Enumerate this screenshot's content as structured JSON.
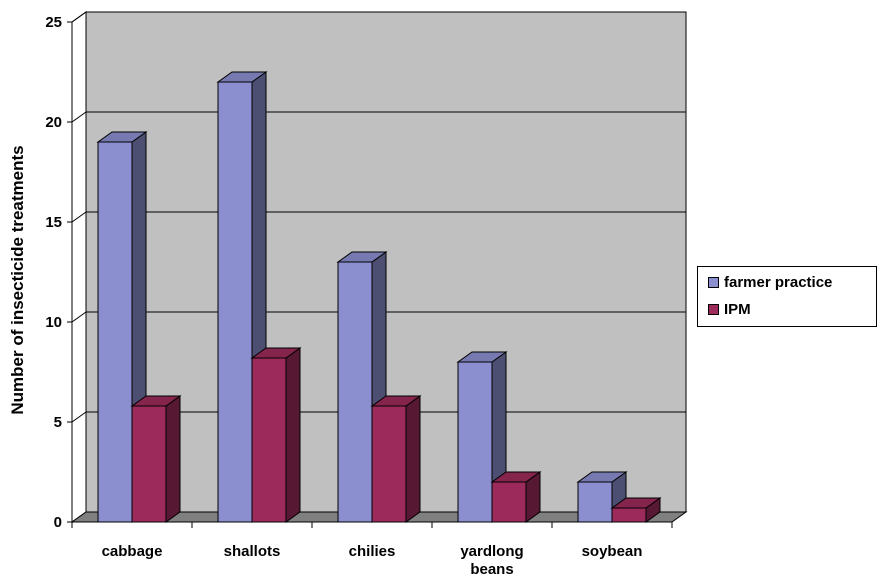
{
  "chart_data": {
    "type": "bar",
    "title": "",
    "xlabel": "",
    "ylabel": "Number of insecticide treatments",
    "categories": [
      [
        "cabbage"
      ],
      [
        "shallots"
      ],
      [
        "chilies"
      ],
      [
        "yardlong",
        "beans"
      ],
      [
        "soybean"
      ]
    ],
    "series": [
      {
        "name": "farmer practice",
        "values": [
          19,
          22,
          13,
          8,
          2
        ],
        "color": "#8b8fd0"
      },
      {
        "name": "IPM",
        "values": [
          5.8,
          8.2,
          5.8,
          2,
          0.7
        ],
        "color": "#9c2b5c"
      }
    ],
    "ylim": [
      0,
      25
    ],
    "yticks": [
      "0",
      "5",
      "10",
      "15",
      "20",
      "25"
    ],
    "grid": true,
    "legend_position": "right"
  }
}
